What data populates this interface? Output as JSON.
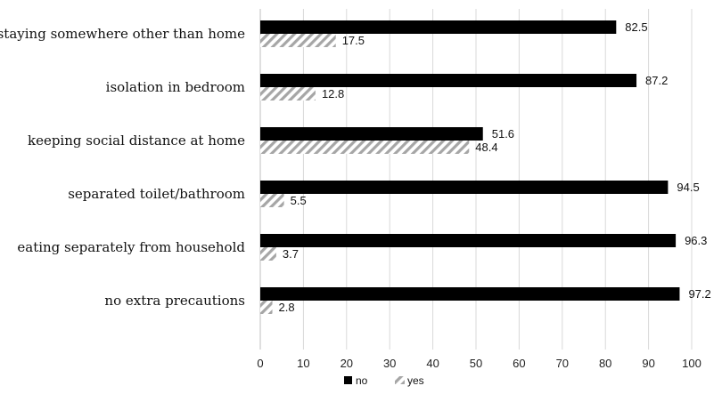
{
  "chart_data": {
    "type": "bar",
    "orientation": "horizontal",
    "categories": [
      "staying somewhere other than home",
      "isolation in bedroom",
      "keeping social distance at home",
      "separated toilet/bathroom",
      "eating separately from household",
      "no extra precautions"
    ],
    "series": [
      {
        "name": "no",
        "values": [
          82.5,
          87.2,
          51.6,
          94.5,
          96.3,
          97.2
        ],
        "color": "#000000",
        "pattern": "solid"
      },
      {
        "name": "yes",
        "values": [
          17.5,
          12.8,
          48.4,
          5.5,
          3.7,
          2.8
        ],
        "color": "#a6a6a6",
        "pattern": "diagonal-hatch"
      }
    ],
    "title": "",
    "xlabel": "",
    "ylabel": "",
    "xlim": [
      0,
      100
    ],
    "x_ticks": [
      0,
      10,
      20,
      30,
      40,
      50,
      60,
      70,
      80,
      90,
      100
    ],
    "grid": true,
    "legend_position": "bottom"
  }
}
